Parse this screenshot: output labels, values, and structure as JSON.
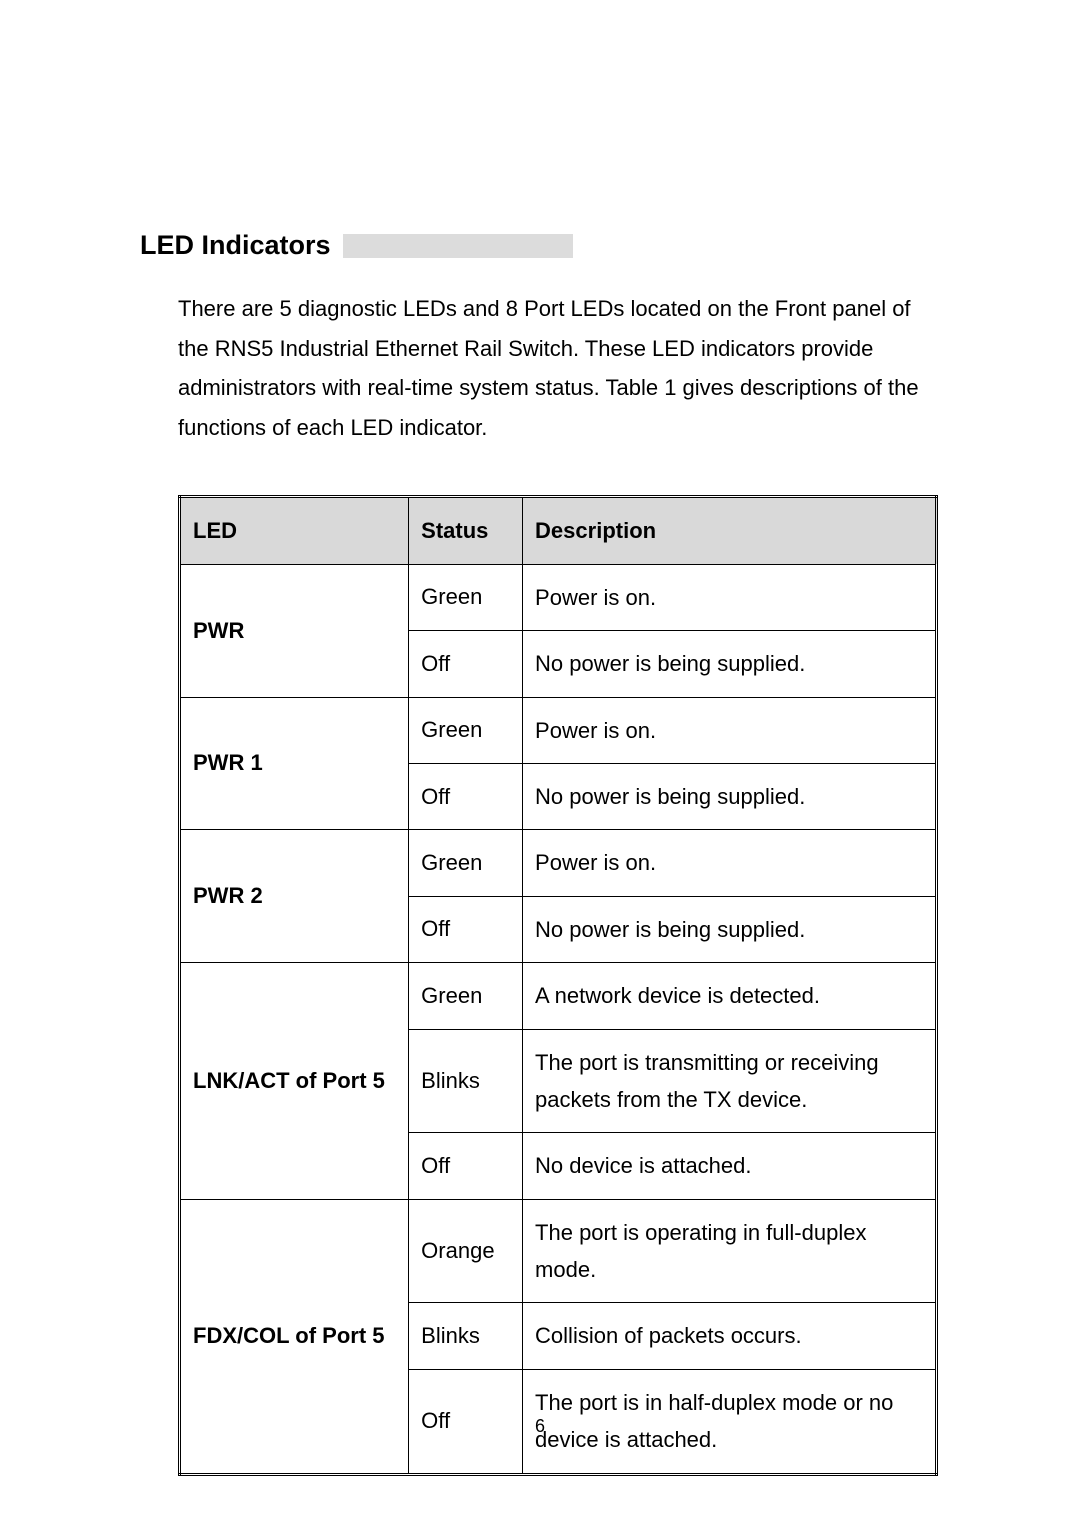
{
  "section_title": "LED Indicators",
  "intro": "There are 5 diagnostic LEDs and 8 Port LEDs located on the Front panel of the RNS5 Industrial Ethernet Rail Switch. These LED indicators provide administrators with real-time system status. Table 1 gives descriptions of the functions of each LED indicator.",
  "table": {
    "headers": {
      "led": "LED",
      "status": "Status",
      "description": "Description"
    },
    "rows": [
      {
        "led": "PWR",
        "rowspan": 2,
        "status": "Green",
        "desc": "Power is on."
      },
      {
        "led": "",
        "rowspan": 0,
        "status": "Off",
        "desc": "No power is being supplied."
      },
      {
        "led": "PWR 1",
        "rowspan": 2,
        "status": "Green",
        "desc": "Power is on."
      },
      {
        "led": "",
        "rowspan": 0,
        "status": "Off",
        "desc": "No power is being supplied."
      },
      {
        "led": "PWR 2",
        "rowspan": 2,
        "status": "Green",
        "desc": "Power is on."
      },
      {
        "led": "",
        "rowspan": 0,
        "status": "Off",
        "desc": "No power is being supplied."
      },
      {
        "led": "LNK/ACT of Port 5",
        "rowspan": 3,
        "status": "Green",
        "desc": "A network device is detected."
      },
      {
        "led": "",
        "rowspan": 0,
        "status": "Blinks",
        "desc": "The port is transmitting or receiving packets from the TX device."
      },
      {
        "led": "",
        "rowspan": 0,
        "status": "Off",
        "desc": "No device is attached."
      },
      {
        "led": "FDX/COL of Port 5",
        "rowspan": 3,
        "status": "Orange",
        "desc": "The port is operating in full-duplex mode."
      },
      {
        "led": "",
        "rowspan": 0,
        "status": "Blinks",
        "desc": "Collision of packets occurs."
      },
      {
        "led": "",
        "rowspan": 0,
        "status": "Off",
        "desc": "The port is in half-duplex mode or no device is attached."
      }
    ]
  },
  "page_number": "6",
  "colors": {
    "header_bg": "#d9d9d9",
    "title_bar": "#dcdcdc",
    "text": "#000000",
    "bg": "#ffffff"
  },
  "fonts": {
    "title_size": 27,
    "body_size": 22,
    "page_num_size": 18
  }
}
